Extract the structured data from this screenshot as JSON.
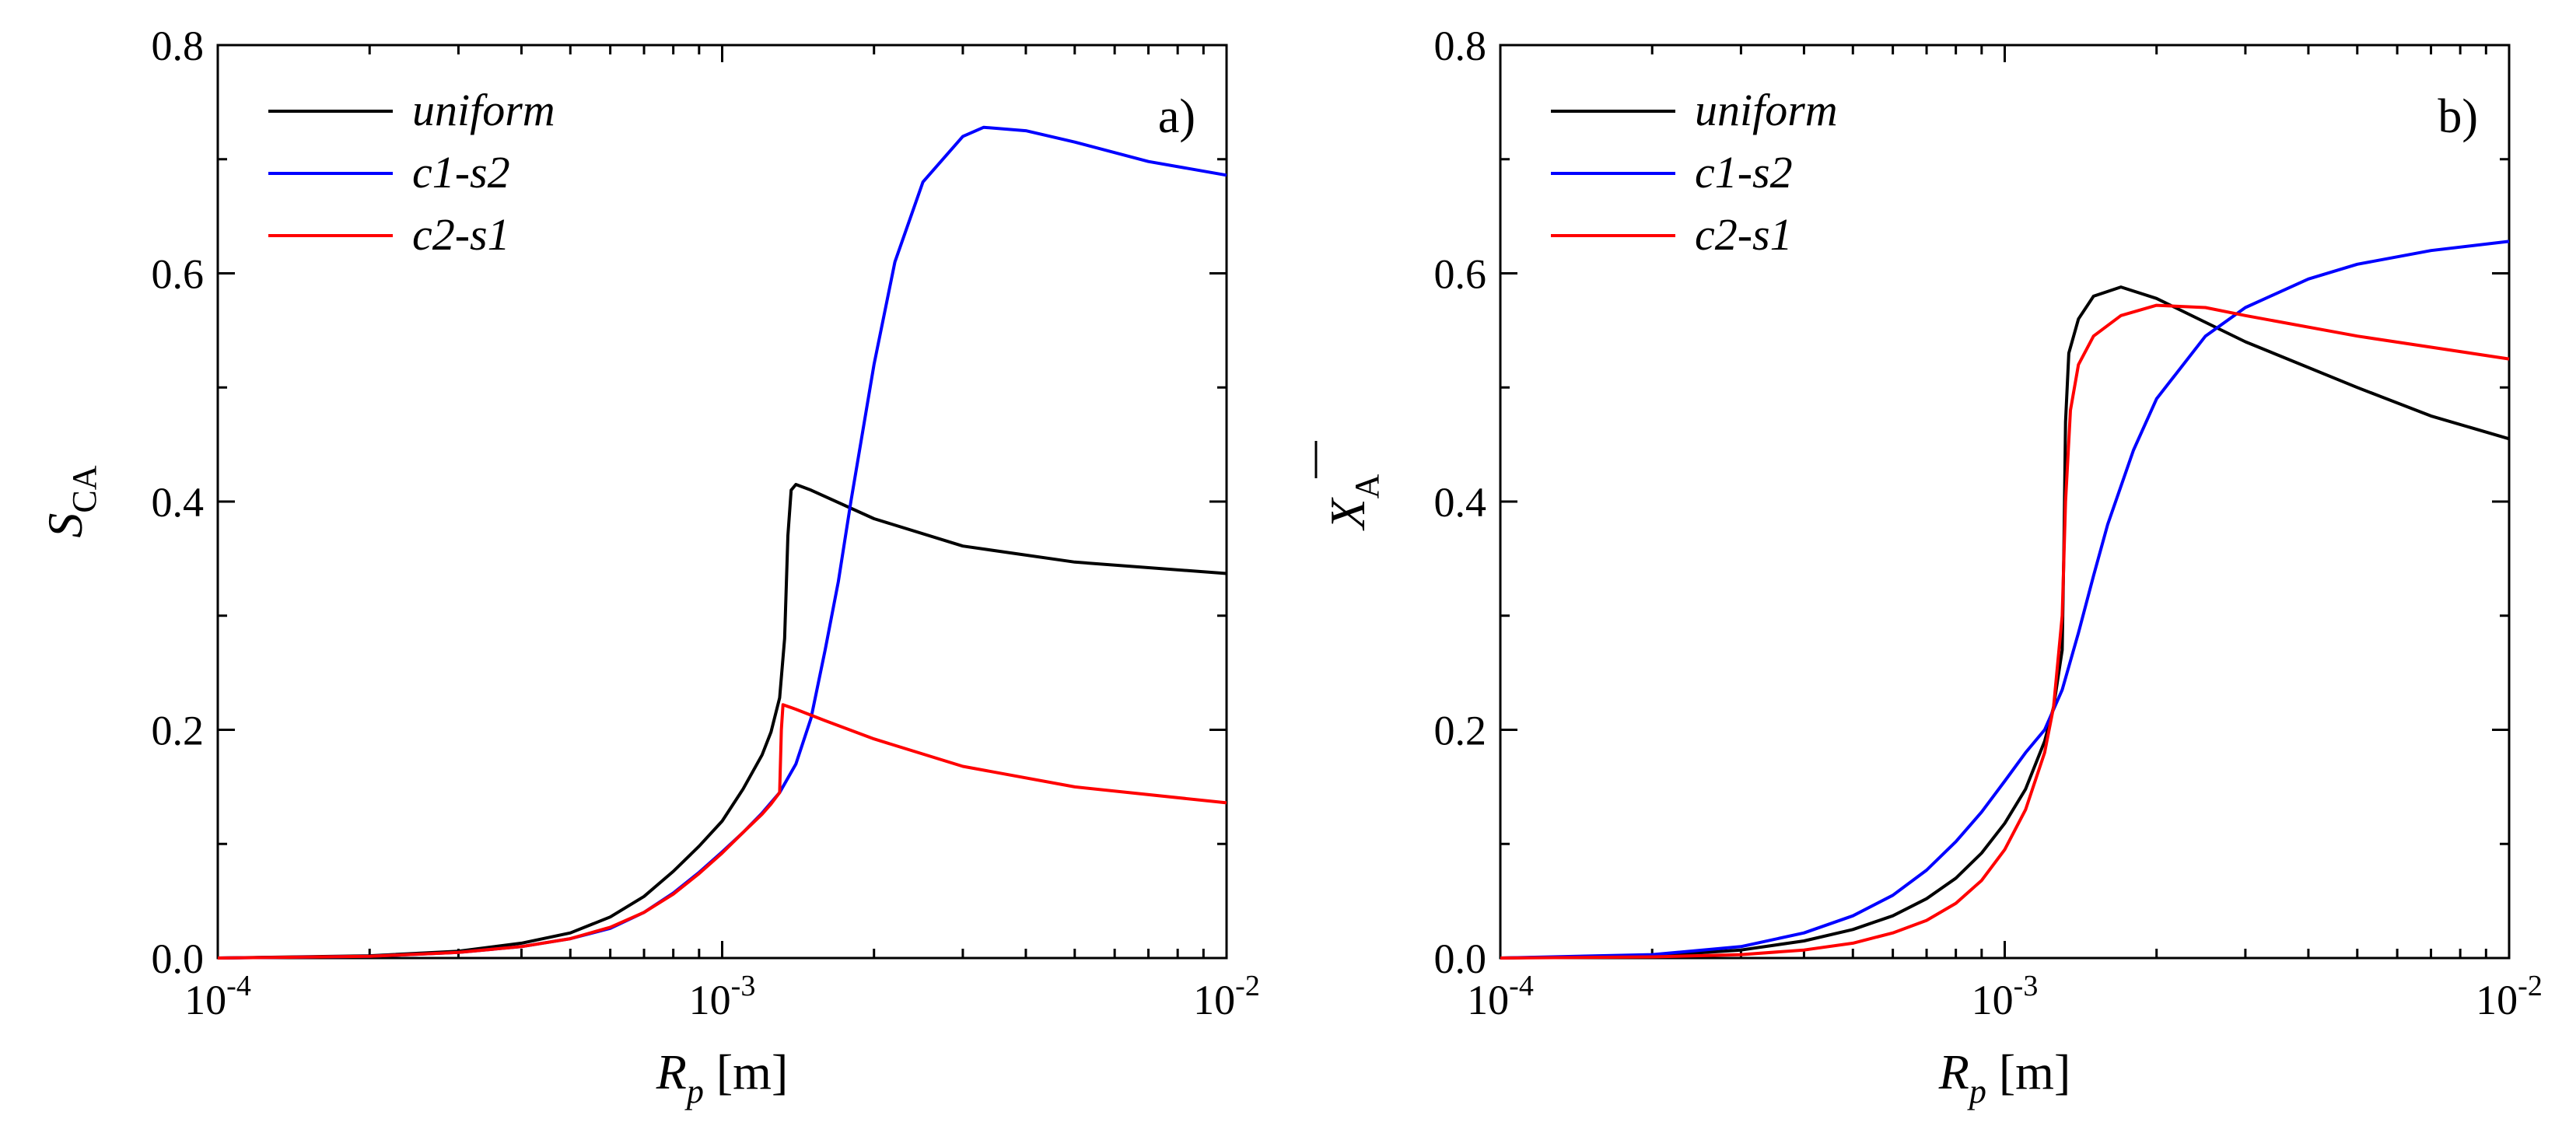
{
  "chart_data": [
    {
      "type": "line",
      "panel_label": "a)",
      "xlabel_main": "R",
      "xlabel_sub": "p",
      "xlabel_unit": " [m]",
      "ylabel_main": "S",
      "ylabel_sub": "CA",
      "xscale": "log",
      "xlim": [
        0.0001,
        0.01
      ],
      "ylim": [
        0.0,
        0.8
      ],
      "x_ticks": [
        {
          "base": "10",
          "exp": "-4"
        },
        {
          "base": "10",
          "exp": "-3"
        },
        {
          "base": "10",
          "exp": "-2"
        }
      ],
      "y_ticks": [
        "0.0",
        "0.2",
        "0.4",
        "0.6",
        "0.8"
      ],
      "legend_position": "top-left",
      "series": [
        {
          "name": "uniform",
          "color": "#000000",
          "points": [
            [
              0.0001,
              0.0
            ],
            [
              0.0002,
              0.002
            ],
            [
              0.0003,
              0.006
            ],
            [
              0.0004,
              0.013
            ],
            [
              0.0005,
              0.022
            ],
            [
              0.0006,
              0.036
            ],
            [
              0.0007,
              0.054
            ],
            [
              0.0008,
              0.076
            ],
            [
              0.0009,
              0.098
            ],
            [
              0.001,
              0.12
            ],
            [
              0.0011,
              0.148
            ],
            [
              0.0012,
              0.178
            ],
            [
              0.00125,
              0.198
            ],
            [
              0.0013,
              0.228
            ],
            [
              0.00133,
              0.28
            ],
            [
              0.00135,
              0.37
            ],
            [
              0.00137,
              0.41
            ],
            [
              0.0014,
              0.415
            ],
            [
              0.0015,
              0.41
            ],
            [
              0.002,
              0.385
            ],
            [
              0.003,
              0.361
            ],
            [
              0.005,
              0.347
            ],
            [
              0.01,
              0.337
            ]
          ]
        },
        {
          "name": "c1-s2",
          "color": "#0000ff",
          "points": [
            [
              0.0001,
              0.0
            ],
            [
              0.0002,
              0.0015
            ],
            [
              0.0003,
              0.005
            ],
            [
              0.0004,
              0.01
            ],
            [
              0.0005,
              0.017
            ],
            [
              0.0006,
              0.026
            ],
            [
              0.0007,
              0.04
            ],
            [
              0.0008,
              0.057
            ],
            [
              0.0009,
              0.075
            ],
            [
              0.001,
              0.093
            ],
            [
              0.0011,
              0.11
            ],
            [
              0.0012,
              0.127
            ],
            [
              0.0013,
              0.145
            ],
            [
              0.0014,
              0.17
            ],
            [
              0.0015,
              0.21
            ],
            [
              0.0016,
              0.27
            ],
            [
              0.0017,
              0.33
            ],
            [
              0.0018,
              0.4
            ],
            [
              0.002,
              0.52
            ],
            [
              0.0022,
              0.61
            ],
            [
              0.0025,
              0.68
            ],
            [
              0.003,
              0.72
            ],
            [
              0.0033,
              0.728
            ],
            [
              0.004,
              0.725
            ],
            [
              0.005,
              0.715
            ],
            [
              0.007,
              0.698
            ],
            [
              0.01,
              0.686
            ]
          ]
        },
        {
          "name": "c2-s1",
          "color": "#ff0000",
          "points": [
            [
              0.0001,
              0.0
            ],
            [
              0.0002,
              0.0015
            ],
            [
              0.0003,
              0.005
            ],
            [
              0.0004,
              0.01
            ],
            [
              0.0005,
              0.017
            ],
            [
              0.0006,
              0.027
            ],
            [
              0.0007,
              0.04
            ],
            [
              0.0008,
              0.056
            ],
            [
              0.0009,
              0.074
            ],
            [
              0.001,
              0.092
            ],
            [
              0.0011,
              0.11
            ],
            [
              0.0012,
              0.126
            ],
            [
              0.00125,
              0.135
            ],
            [
              0.0013,
              0.145
            ],
            [
              0.00131,
              0.2
            ],
            [
              0.00132,
              0.222
            ],
            [
              0.0014,
              0.218
            ],
            [
              0.0016,
              0.208
            ],
            [
              0.002,
              0.192
            ],
            [
              0.003,
              0.168
            ],
            [
              0.005,
              0.15
            ],
            [
              0.01,
              0.136
            ]
          ]
        }
      ]
    },
    {
      "type": "line",
      "panel_label": "b)",
      "xlabel_main": "R",
      "xlabel_sub": "p",
      "xlabel_unit": " [m]",
      "ylabel_main": "X",
      "ylabel_sub": "A",
      "ylabel_overbar": true,
      "xscale": "log",
      "xlim": [
        0.0001,
        0.01
      ],
      "ylim": [
        0.0,
        0.8
      ],
      "x_ticks": [
        {
          "base": "10",
          "exp": "-4"
        },
        {
          "base": "10",
          "exp": "-3"
        },
        {
          "base": "10",
          "exp": "-2"
        }
      ],
      "y_ticks": [
        "0.0",
        "0.2",
        "0.4",
        "0.6",
        "0.8"
      ],
      "legend_position": "top-left",
      "series": [
        {
          "name": "uniform",
          "color": "#000000",
          "points": [
            [
              0.0001,
              0.0
            ],
            [
              0.0002,
              0.002
            ],
            [
              0.0003,
              0.007
            ],
            [
              0.0004,
              0.015
            ],
            [
              0.0005,
              0.025
            ],
            [
              0.0006,
              0.037
            ],
            [
              0.0007,
              0.052
            ],
            [
              0.0008,
              0.07
            ],
            [
              0.0009,
              0.092
            ],
            [
              0.001,
              0.118
            ],
            [
              0.0011,
              0.148
            ],
            [
              0.0012,
              0.19
            ],
            [
              0.00125,
              0.22
            ],
            [
              0.0013,
              0.27
            ],
            [
              0.00131,
              0.36
            ],
            [
              0.00132,
              0.47
            ],
            [
              0.00134,
              0.53
            ],
            [
              0.0014,
              0.56
            ],
            [
              0.0015,
              0.58
            ],
            [
              0.0017,
              0.588
            ],
            [
              0.002,
              0.578
            ],
            [
              0.003,
              0.54
            ],
            [
              0.005,
              0.5
            ],
            [
              0.007,
              0.475
            ],
            [
              0.01,
              0.455
            ]
          ]
        },
        {
          "name": "c1-s2",
          "color": "#0000ff",
          "points": [
            [
              0.0001,
              0.0
            ],
            [
              0.0002,
              0.003
            ],
            [
              0.0003,
              0.01
            ],
            [
              0.0004,
              0.022
            ],
            [
              0.0005,
              0.037
            ],
            [
              0.0006,
              0.055
            ],
            [
              0.0007,
              0.077
            ],
            [
              0.0008,
              0.102
            ],
            [
              0.0009,
              0.128
            ],
            [
              0.001,
              0.155
            ],
            [
              0.0011,
              0.18
            ],
            [
              0.0012,
              0.2
            ],
            [
              0.0013,
              0.235
            ],
            [
              0.0014,
              0.285
            ],
            [
              0.0015,
              0.335
            ],
            [
              0.0016,
              0.38
            ],
            [
              0.0018,
              0.445
            ],
            [
              0.002,
              0.49
            ],
            [
              0.0025,
              0.545
            ],
            [
              0.003,
              0.57
            ],
            [
              0.004,
              0.595
            ],
            [
              0.005,
              0.608
            ],
            [
              0.007,
              0.62
            ],
            [
              0.01,
              0.628
            ]
          ]
        },
        {
          "name": "c2-s1",
          "color": "#ff0000",
          "points": [
            [
              0.0001,
              0.0
            ],
            [
              0.0002,
              0.001
            ],
            [
              0.0003,
              0.003
            ],
            [
              0.0004,
              0.007
            ],
            [
              0.0005,
              0.013
            ],
            [
              0.0006,
              0.022
            ],
            [
              0.0007,
              0.033
            ],
            [
              0.0008,
              0.048
            ],
            [
              0.0009,
              0.068
            ],
            [
              0.001,
              0.095
            ],
            [
              0.0011,
              0.13
            ],
            [
              0.0012,
              0.18
            ],
            [
              0.00125,
              0.22
            ],
            [
              0.0013,
              0.3
            ],
            [
              0.00132,
              0.4
            ],
            [
              0.00135,
              0.48
            ],
            [
              0.0014,
              0.52
            ],
            [
              0.0015,
              0.545
            ],
            [
              0.0017,
              0.563
            ],
            [
              0.002,
              0.572
            ],
            [
              0.0025,
              0.57
            ],
            [
              0.003,
              0.563
            ],
            [
              0.005,
              0.545
            ],
            [
              0.01,
              0.525
            ]
          ]
        }
      ]
    }
  ]
}
